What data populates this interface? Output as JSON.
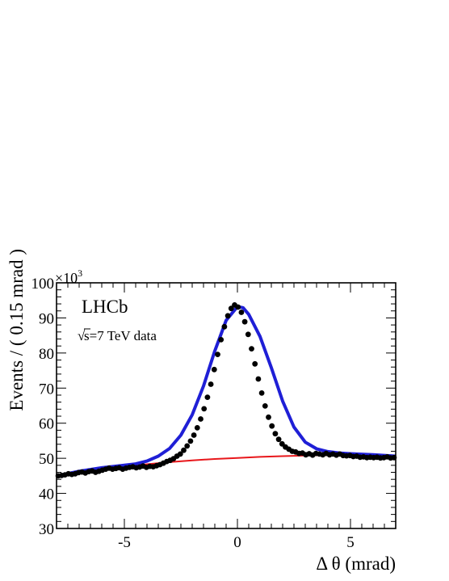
{
  "chart_data": {
    "type": "scatter",
    "xlabel": "Δ θ (mrad)",
    "ylabel": "Events / ( 0.15 mrad )",
    "y_multiplier_label": "×10",
    "y_multiplier_exponent": "3",
    "xlim": [
      -8,
      7
    ],
    "ylim": [
      30,
      100
    ],
    "x_ticks": [
      -5,
      0,
      5
    ],
    "x_tick_labels": [
      "-5",
      "0",
      "5"
    ],
    "y_ticks": [
      30,
      40,
      50,
      60,
      70,
      80,
      90,
      100
    ],
    "y_tick_labels": [
      "30",
      "40",
      "50",
      "60",
      "70",
      "80",
      "90",
      "100"
    ],
    "grid": false,
    "annotations": [
      {
        "id": "experiment",
        "text": "LHCb"
      },
      {
        "id": "energy",
        "sqrt_symbol": "√",
        "text": "s=7 TeV data"
      }
    ],
    "series": [
      {
        "kind": "points",
        "color": "#000000",
        "marker": "circle",
        "bin_width": 0.15,
        "x_start": -7.925,
        "x_end": 6.925,
        "values": [
          45.0,
          45.1,
          45.3,
          45.6,
          45.4,
          45.6,
          45.9,
          46.1,
          45.8,
          46.2,
          46.4,
          46.0,
          46.3,
          46.6,
          46.9,
          47.2,
          46.9,
          47.1,
          47.3,
          46.9,
          47.2,
          47.4,
          47.6,
          47.3,
          47.5,
          47.8,
          47.4,
          47.7,
          47.6,
          47.9,
          48.2,
          48.6,
          49.1,
          49.4,
          49.9,
          50.6,
          51.2,
          52.3,
          53.5,
          54.9,
          56.6,
          58.7,
          61.2,
          64.1,
          67.4,
          71.1,
          75.3,
          79.6,
          83.8,
          87.5,
          90.6,
          92.7,
          93.7,
          93.1,
          91.6,
          88.9,
          85.3,
          81.2,
          76.9,
          72.6,
          68.6,
          64.9,
          61.7,
          59.2,
          57.0,
          55.4,
          54.1,
          53.2,
          52.6,
          52.0,
          51.8,
          51.4,
          51.5,
          51.0,
          51.3,
          50.9,
          51.4,
          51.2,
          51.0,
          51.4,
          51.0,
          51.2,
          50.9,
          51.2,
          50.8,
          50.7,
          50.8,
          50.5,
          50.6,
          50.3,
          50.4,
          50.2,
          50.3,
          50.2,
          50.3,
          50.1,
          50.2,
          50.4,
          50.1,
          50.2
        ]
      },
      {
        "kind": "total-fit",
        "color": "#1f1fd6",
        "x": [
          -8,
          -7,
          -6,
          -5,
          -4.5,
          -4,
          -3.5,
          -3,
          -2.5,
          -2,
          -1.5,
          -1,
          -0.5,
          0,
          0.25,
          0.5,
          1,
          1.5,
          2,
          2.5,
          3,
          3.5,
          4,
          4.5,
          5,
          6,
          7
        ],
        "y": [
          45.0,
          46.3,
          47.3,
          48.0,
          48.4,
          49.2,
          50.6,
          52.8,
          56.6,
          62.4,
          70.6,
          80.6,
          89.3,
          93.2,
          92.9,
          91.0,
          84.7,
          75.8,
          66.3,
          58.9,
          54.6,
          52.7,
          51.9,
          51.5,
          51.3,
          51.0,
          50.6
        ]
      },
      {
        "kind": "background-fit",
        "color": "#e8171b",
        "x": [
          -8,
          -7,
          -6,
          -5,
          -4,
          -3,
          -2,
          -1,
          0,
          1,
          2,
          3,
          4,
          5,
          6,
          7
        ],
        "y": [
          45.0,
          45.9,
          46.8,
          47.6,
          48.3,
          48.9,
          49.4,
          49.8,
          50.1,
          50.4,
          50.6,
          50.8,
          50.9,
          50.9,
          50.8,
          50.6
        ]
      }
    ]
  }
}
